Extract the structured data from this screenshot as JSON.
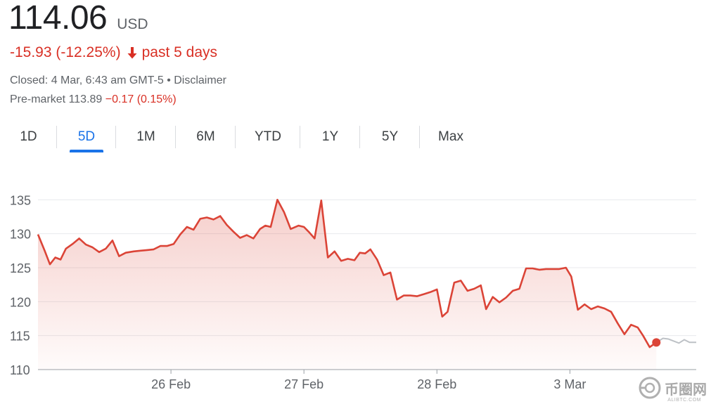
{
  "quote": {
    "price": "114.06",
    "currency": "USD",
    "change": "-15.93 (-12.25%)",
    "period": "past 5 days",
    "closed": "Closed: 4 Mar, 6:43 am GMT-5 • Disclaimer",
    "premarket_label": "Pre-market 113.89",
    "premarket_change": "−0.17 (0.15%)"
  },
  "tabs": [
    {
      "label": "1D",
      "active": false
    },
    {
      "label": "5D",
      "active": true
    },
    {
      "label": "1M",
      "active": false
    },
    {
      "label": "6M",
      "active": false
    },
    {
      "label": "YTD",
      "active": false
    },
    {
      "label": "1Y",
      "active": false
    },
    {
      "label": "5Y",
      "active": false
    },
    {
      "label": "Max",
      "active": false
    }
  ],
  "colors": {
    "line": "#db4437",
    "premarket_line": "#bdc1c6",
    "grid": "#e8eaed",
    "fill_top": "#db4437",
    "active_tab": "#1a73e8"
  },
  "watermark": {
    "text": "币圈网",
    "sub": "ALIBTC.COM"
  },
  "chart_data": {
    "type": "area",
    "title": "",
    "xlabel": "",
    "ylabel": "",
    "ylim": [
      110,
      137
    ],
    "yticks": [
      110,
      115,
      120,
      125,
      130,
      135
    ],
    "xticks": [
      {
        "label": "26 Feb",
        "x": 1
      },
      {
        "label": "27 Feb",
        "x": 2
      },
      {
        "label": "28 Feb",
        "x": 3
      },
      {
        "label": "3 Mar",
        "x": 4
      }
    ],
    "xlim": [
      0.0,
      4.95
    ],
    "grid": true,
    "series": [
      {
        "x": [
          0.0,
          0.05,
          0.09,
          0.13,
          0.17,
          0.21,
          0.26,
          0.31,
          0.36,
          0.41,
          0.46,
          0.51,
          0.56,
          0.61,
          0.66,
          0.72,
          0.77,
          0.82,
          0.87,
          0.92,
          0.97,
          1.02,
          1.07,
          1.12,
          1.17,
          1.22,
          1.27,
          1.32,
          1.37,
          1.42,
          1.47,
          1.52,
          1.57,
          1.62,
          1.67,
          1.71,
          1.75,
          1.8,
          1.85,
          1.9,
          1.96,
          2.0,
          2.04,
          2.08,
          2.13,
          2.18,
          2.23,
          2.28,
          2.33,
          2.38,
          2.42,
          2.46,
          2.5,
          2.55,
          2.6,
          2.65,
          2.7,
          2.75,
          2.8,
          2.85,
          2.9,
          2.95,
          3.0,
          3.04,
          3.08,
          3.13,
          3.18,
          3.23,
          3.28,
          3.33,
          3.37,
          3.42,
          3.47,
          3.52,
          3.57,
          3.62,
          3.67,
          3.72,
          3.77,
          3.82,
          3.87,
          3.92,
          3.97,
          4.01,
          4.06,
          4.11,
          4.16,
          4.21,
          4.26,
          4.31,
          4.36,
          4.41,
          4.46,
          4.51,
          4.55,
          4.6
        ],
        "values": [
          129.9,
          127.5,
          125.5,
          126.5,
          126.2,
          127.8,
          128.5,
          129.3,
          128.4,
          128.0,
          127.3,
          127.8,
          129.0,
          126.7,
          127.2,
          127.4,
          127.5,
          127.6,
          127.7,
          128.2,
          128.2,
          128.5,
          129.9,
          131.0,
          130.6,
          132.2,
          132.4,
          132.1,
          132.6,
          131.3,
          130.3,
          129.4,
          129.8,
          129.3,
          130.7,
          131.2,
          131.0,
          135.0,
          133.2,
          130.7,
          131.2,
          131.0,
          130.2,
          129.3,
          134.9,
          126.5,
          127.4,
          126.0,
          126.3,
          126.1,
          127.2,
          127.1,
          127.7,
          126.2,
          123.9,
          124.3,
          120.3,
          120.9,
          120.9,
          120.8,
          121.1,
          121.4,
          121.8,
          117.8,
          118.5,
          122.8,
          123.1,
          121.6,
          121.9,
          122.4,
          118.9,
          120.7,
          119.9,
          120.6,
          121.6,
          121.9,
          124.9,
          124.9,
          124.7,
          124.8,
          124.8,
          124.8,
          125.0,
          123.7,
          118.8,
          119.6,
          118.9,
          119.3,
          119.0,
          118.5,
          116.8,
          115.2,
          116.6,
          116.2,
          115.0,
          113.3
        ],
        "color": "#db4437"
      }
    ],
    "last_point": {
      "x": 4.65,
      "value": 114.0
    },
    "premarket": {
      "x": [
        4.65,
        4.7,
        4.74,
        4.78,
        4.82,
        4.86,
        4.9,
        4.95
      ],
      "values": [
        114.0,
        114.6,
        114.5,
        114.2,
        113.9,
        114.4,
        114.0,
        114.0
      ],
      "color": "#bdc1c6"
    }
  }
}
